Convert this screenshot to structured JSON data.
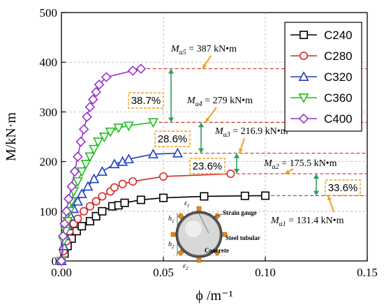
{
  "chart_data": {
    "type": "line",
    "xlabel": "ϕ /m⁻¹",
    "ylabel": "M/kN·m",
    "xlim": [
      0,
      0.15
    ],
    "ylim": [
      0,
      500
    ],
    "xticks": [
      "0.00",
      "0.05",
      "0.10",
      "0.15"
    ],
    "yticks": [
      "0",
      "100",
      "200",
      "300",
      "400",
      "500"
    ],
    "xtick_values": [
      0,
      0.05,
      0.1,
      0.15
    ],
    "ytick_values": [
      0,
      100,
      200,
      300,
      400,
      500
    ],
    "grid": true,
    "legend_placement": "top-right",
    "series": [
      {
        "name": "C240",
        "marker": "square",
        "color": "#000000",
        "x": [
          0.0,
          0.0015,
          0.003,
          0.005,
          0.0075,
          0.01,
          0.014,
          0.017,
          0.02,
          0.025,
          0.028,
          0.031,
          0.039,
          0.05,
          0.07,
          0.09,
          0.1
        ],
        "y": [
          0,
          15,
          30,
          45,
          60,
          70,
          80,
          90,
          100,
          110,
          112,
          117,
          123,
          127,
          130,
          131,
          131.4
        ]
      },
      {
        "name": "C280",
        "marker": "circle",
        "color": "#d62728",
        "x": [
          0.0,
          0.001,
          0.0025,
          0.004,
          0.006,
          0.008,
          0.011,
          0.014,
          0.017,
          0.02,
          0.024,
          0.026,
          0.03,
          0.035,
          0.05,
          0.083
        ],
        "y": [
          0,
          20,
          40,
          60,
          75,
          85,
          100,
          110,
          120,
          130,
          140,
          148,
          155,
          160,
          170,
          175.5
        ]
      },
      {
        "name": "C320",
        "marker": "triangle",
        "color": "#1f3fbf",
        "x": [
          0.0,
          0.001,
          0.002,
          0.003,
          0.0045,
          0.006,
          0.008,
          0.01,
          0.013,
          0.016,
          0.02,
          0.026,
          0.03,
          0.033,
          0.045,
          0.057
        ],
        "y": [
          0,
          30,
          50,
          70,
          90,
          105,
          120,
          135,
          150,
          165,
          180,
          195,
          200,
          205,
          215,
          216.9
        ]
      },
      {
        "name": "C360",
        "marker": "triangle-down",
        "color": "#22bb22",
        "x": [
          0.0,
          0.001,
          0.002,
          0.003,
          0.004,
          0.005,
          0.006,
          0.008,
          0.01,
          0.012,
          0.014,
          0.016,
          0.018,
          0.021,
          0.024,
          0.028,
          0.033,
          0.045
        ],
        "y": [
          0,
          40,
          60,
          80,
          100,
          120,
          140,
          160,
          180,
          195,
          210,
          225,
          240,
          250,
          260,
          268,
          272,
          279
        ]
      },
      {
        "name": "C400",
        "marker": "diamond",
        "color": "#9933cc",
        "x": [
          0.0,
          0.0008,
          0.0015,
          0.0025,
          0.0035,
          0.005,
          0.0065,
          0.008,
          0.0095,
          0.011,
          0.0125,
          0.014,
          0.0155,
          0.017,
          0.0185,
          0.022,
          0.035,
          0.039
        ],
        "y": [
          0,
          50,
          75,
          100,
          125,
          150,
          180,
          210,
          240,
          265,
          290,
          310,
          325,
          340,
          355,
          370,
          383,
          387
        ]
      }
    ],
    "annotations": {
      "mu5": "M<sub>u5</sub> = 387 kN•m",
      "mu4": "M<sub>u4</sub> = 279 kN•m",
      "mu3": "M<sub>u3</sub> = 216.9 kN•m",
      "mu2": "M<sub>u2</sub> = 175.5 kN•m",
      "mu1": "M<sub>u1</sub> = 131.4 kN•m",
      "p1": "38.7%",
      "p2": "28.6%",
      "p3": "23.6%",
      "p4": "33.6%"
    },
    "ref_lines": [
      387,
      279,
      216.9,
      175.5,
      131.4
    ],
    "inset": {
      "strain_gauge": "Strain gauge",
      "steel_tubular": "Steel tubular",
      "concrete": "Concrete",
      "h1": "h",
      "h1_sub": "1",
      "h2": "h",
      "h2_sub": "2",
      "e1": "ε",
      "e1_sub": "1",
      "e2": "ε",
      "e2_sub": "2"
    }
  }
}
